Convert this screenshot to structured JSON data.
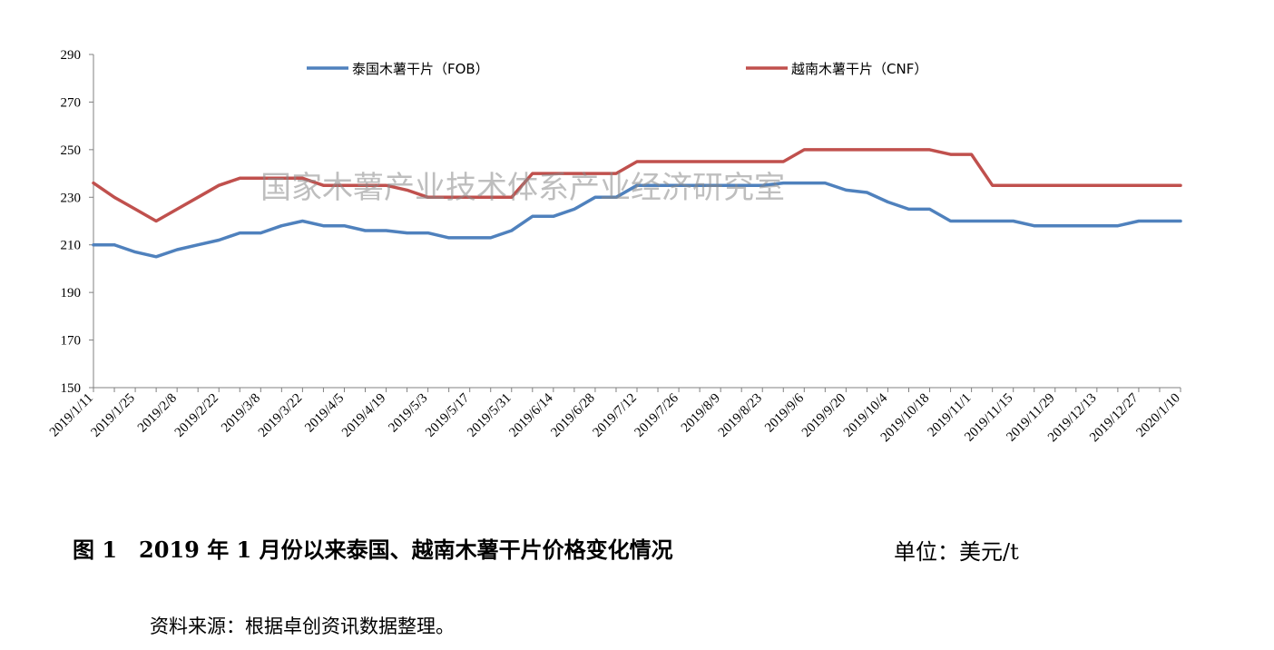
{
  "chart_data": {
    "type": "line",
    "ylim": [
      150,
      290
    ],
    "yticks": [
      150,
      170,
      190,
      210,
      230,
      250,
      270,
      290
    ],
    "x_tick_labels": [
      "2019/1/11",
      "2019/1/25",
      "2019/2/8",
      "2019/2/22",
      "2019/3/8",
      "2019/3/22",
      "2019/4/5",
      "2019/4/19",
      "2019/5/3",
      "2019/5/17",
      "2019/5/31",
      "2019/6/14",
      "2019/6/28",
      "2019/7/12",
      "2019/7/26",
      "2019/8/9",
      "2019/8/23",
      "2019/9/6",
      "2019/9/20",
      "2019/10/4",
      "2019/10/18",
      "2019/11/1",
      "2019/11/15",
      "2019/11/29",
      "2019/12/13",
      "2019/12/27",
      "2020/1/10"
    ],
    "x": [
      "2019/1/11",
      "2019/1/18",
      "2019/1/25",
      "2019/2/1",
      "2019/2/8",
      "2019/2/15",
      "2019/2/22",
      "2019/3/1",
      "2019/3/8",
      "2019/3/15",
      "2019/3/22",
      "2019/3/29",
      "2019/4/5",
      "2019/4/12",
      "2019/4/19",
      "2019/4/26",
      "2019/5/3",
      "2019/5/10",
      "2019/5/17",
      "2019/5/24",
      "2019/5/31",
      "2019/6/7",
      "2019/6/14",
      "2019/6/21",
      "2019/6/28",
      "2019/7/5",
      "2019/7/12",
      "2019/7/19",
      "2019/7/26",
      "2019/8/2",
      "2019/8/9",
      "2019/8/16",
      "2019/8/23",
      "2019/8/30",
      "2019/9/6",
      "2019/9/13",
      "2019/9/20",
      "2019/9/27",
      "2019/10/4",
      "2019/10/11",
      "2019/10/18",
      "2019/10/25",
      "2019/11/1",
      "2019/11/8",
      "2019/11/15",
      "2019/11/22",
      "2019/11/29",
      "2019/12/6",
      "2019/12/13",
      "2019/12/20",
      "2019/12/27",
      "2020/1/3",
      "2020/1/10"
    ],
    "series": [
      {
        "name": "泰国木薯干片（FOB）",
        "color": "#4f81bd",
        "values": [
          210,
          210,
          207,
          205,
          208,
          210,
          212,
          215,
          215,
          218,
          220,
          218,
          218,
          216,
          216,
          215,
          215,
          213,
          213,
          213,
          216,
          222,
          222,
          225,
          230,
          230,
          235,
          235,
          235,
          235,
          235,
          235,
          235,
          236,
          236,
          236,
          233,
          232,
          228,
          225,
          225,
          220,
          220,
          220,
          220,
          218,
          218,
          218,
          218,
          218,
          220,
          220,
          220
        ]
      },
      {
        "name": "越南木薯干片（CNF）",
        "color": "#c0504d",
        "values": [
          236,
          230,
          225,
          220,
          225,
          230,
          235,
          238,
          238,
          238,
          238,
          235,
          235,
          235,
          235,
          233,
          230,
          230,
          230,
          230,
          230,
          240,
          240,
          240,
          240,
          240,
          245,
          245,
          245,
          245,
          245,
          245,
          245,
          245,
          250,
          250,
          250,
          250,
          250,
          250,
          250,
          248,
          248,
          235,
          235,
          235,
          235,
          235,
          235,
          235,
          235,
          235,
          235
        ]
      }
    ],
    "watermark": "国家木薯产业技术体系产业经济研究室",
    "grid": false,
    "legend_position": "top"
  },
  "caption": {
    "title": "图 1　2019 年 1 月份以来泰国、越南木薯干片价格变化情况",
    "unit": "单位：美元/t"
  },
  "source_note": "资料来源：根据卓创资讯数据整理。"
}
